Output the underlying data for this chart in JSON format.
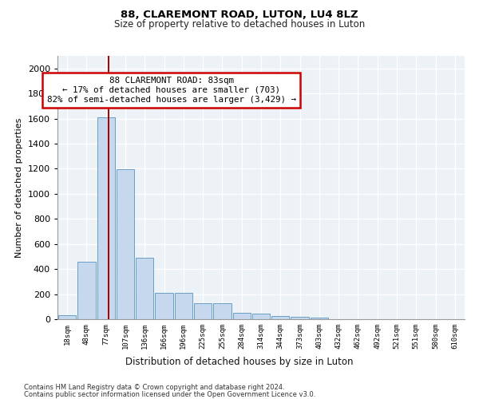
{
  "title1": "88, CLAREMONT ROAD, LUTON, LU4 8LZ",
  "title2": "Size of property relative to detached houses in Luton",
  "xlabel": "Distribution of detached houses by size in Luton",
  "ylabel": "Number of detached properties",
  "footer1": "Contains HM Land Registry data © Crown copyright and database right 2024.",
  "footer2": "Contains public sector information licensed under the Open Government Licence v3.0.",
  "annotation_title": "88 CLAREMONT ROAD: 83sqm",
  "annotation_line1": "← 17% of detached houses are smaller (703)",
  "annotation_line2": "82% of semi-detached houses are larger (3,429) →",
  "bar_color": "#c5d8ed",
  "bar_edge_color": "#6a9ec5",
  "vline_color": "#aa0000",
  "annotation_box_edge_color": "#cc0000",
  "bins": [
    "18sqm",
    "48sqm",
    "77sqm",
    "107sqm",
    "136sqm",
    "166sqm",
    "196sqm",
    "225sqm",
    "255sqm",
    "284sqm",
    "314sqm",
    "344sqm",
    "373sqm",
    "403sqm",
    "432sqm",
    "462sqm",
    "492sqm",
    "521sqm",
    "551sqm",
    "580sqm",
    "610sqm"
  ],
  "values": [
    35,
    460,
    1610,
    1195,
    490,
    210,
    210,
    130,
    130,
    50,
    45,
    25,
    20,
    15,
    0,
    0,
    0,
    0,
    0,
    0,
    0
  ],
  "vline_x": 2.15,
  "ylim": [
    0,
    2100
  ],
  "yticks": [
    0,
    200,
    400,
    600,
    800,
    1000,
    1200,
    1400,
    1600,
    1800,
    2000
  ],
  "background_color": "#edf2f7",
  "grid_color": "#ffffff"
}
